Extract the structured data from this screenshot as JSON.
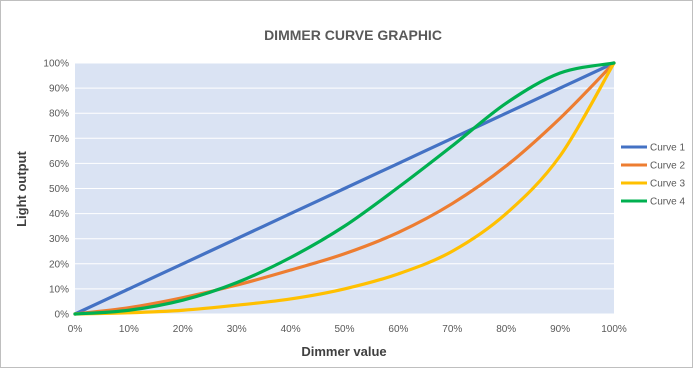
{
  "chart_data": {
    "type": "line",
    "title": "DIMMER CURVE GRAPHIC",
    "xlabel": "Dimmer value",
    "ylabel": "Light output",
    "xlim": [
      0,
      100
    ],
    "ylim": [
      0,
      100
    ],
    "x_ticks": [
      "0%",
      "10%",
      "20%",
      "30%",
      "40%",
      "50%",
      "60%",
      "70%",
      "80%",
      "90%",
      "100%"
    ],
    "y_ticks": [
      "0%",
      "10%",
      "20%",
      "30%",
      "40%",
      "50%",
      "60%",
      "70%",
      "80%",
      "90%",
      "100%"
    ],
    "grid": true,
    "legend_position": "right",
    "plot_background": "#dae3f3",
    "x": [
      0,
      10,
      20,
      30,
      40,
      50,
      60,
      70,
      80,
      90,
      100
    ],
    "series": [
      {
        "name": "Curve 1",
        "color": "#4472c4",
        "values": [
          0,
          10,
          20,
          30,
          40,
          50,
          60,
          70,
          80,
          90,
          100
        ]
      },
      {
        "name": "Curve 2",
        "color": "#ed7d31",
        "values": [
          0,
          2.5,
          6.5,
          11.5,
          17.5,
          24,
          32.5,
          44,
          59,
          78,
          100
        ]
      },
      {
        "name": "Curve 3",
        "color": "#ffc000",
        "values": [
          0,
          0.5,
          1.5,
          3.5,
          6,
          10,
          16,
          25,
          40,
          63,
          100
        ]
      },
      {
        "name": "Curve 4",
        "color": "#00b050",
        "values": [
          0,
          1.5,
          5.5,
          12.5,
          22.5,
          35,
          50.5,
          67,
          84,
          96,
          100
        ]
      }
    ]
  }
}
